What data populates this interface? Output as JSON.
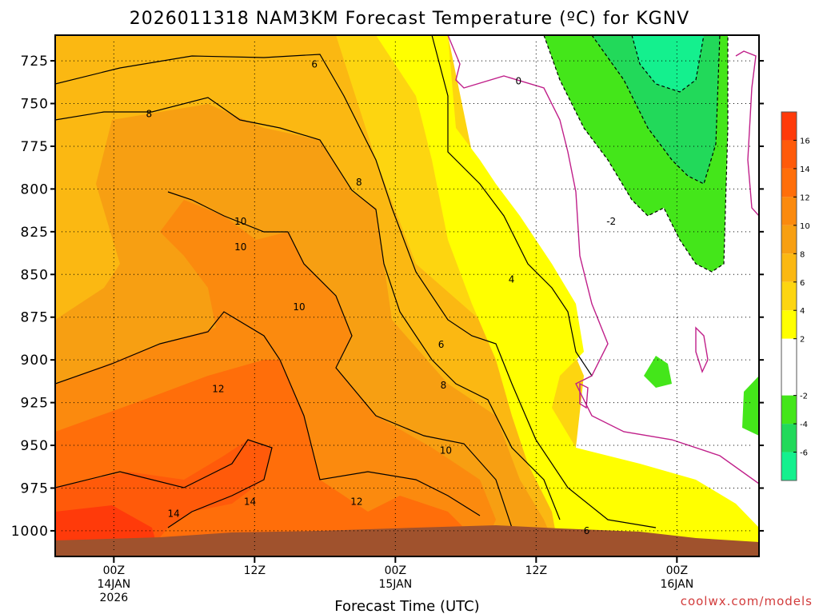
{
  "chart_data": {
    "type": "heatmap",
    "title": "2026011318 NAM3KM Forecast Temperature (ºC) for KGNV",
    "xlabel": "Forecast Time (UTC)",
    "ylabel": "",
    "y_axis": {
      "reversed": true,
      "ylim": [
        1015,
        710
      ],
      "ticks": [
        "725",
        "750",
        "775",
        "800",
        "825",
        "850",
        "875",
        "900",
        "925",
        "950",
        "975",
        "1000"
      ]
    },
    "x_axis": {
      "xlim": [
        -5,
        55
      ],
      "ticks": [
        {
          "hour": 0,
          "lines": [
            "00Z",
            "14JAN",
            "2026"
          ]
        },
        {
          "hour": 12,
          "lines": [
            "12Z"
          ]
        },
        {
          "hour": 24,
          "lines": [
            "00Z",
            "15JAN"
          ]
        },
        {
          "hour": 36,
          "lines": [
            "12Z"
          ]
        },
        {
          "hour": 48,
          "lines": [
            "00Z",
            "16JAN"
          ]
        }
      ]
    },
    "grid": true,
    "colorbar": {
      "ticks": [
        "16",
        "14",
        "12",
        "10",
        "8",
        "6",
        "4",
        "2",
        "-2",
        "-4",
        "-6"
      ],
      "bins": [
        {
          "from": 16,
          "to": 18,
          "color": "#ff3a0a"
        },
        {
          "from": 14,
          "to": 16,
          "color": "#ff5a0a"
        },
        {
          "from": 12,
          "to": 14,
          "color": "#ff6e0a"
        },
        {
          "from": 10,
          "to": 12,
          "color": "#fb8a0e"
        },
        {
          "from": 8,
          "to": 10,
          "color": "#f79f12"
        },
        {
          "from": 6,
          "to": 8,
          "color": "#fbb812"
        },
        {
          "from": 4,
          "to": 6,
          "color": "#fdd510"
        },
        {
          "from": 2,
          "to": 4,
          "color": "#ffff00"
        },
        {
          "from": -2,
          "to": 2,
          "color": "#ffffff"
        },
        {
          "from": -4,
          "to": -2,
          "color": "#44e61a"
        },
        {
          "from": -6,
          "to": -4,
          "color": "#22d95a"
        },
        {
          "from": -8,
          "to": -6,
          "color": "#14f08e"
        }
      ]
    },
    "contour_labels": [
      {
        "text": "6",
        "hour": 17.1,
        "pressure": 727
      },
      {
        "text": "8",
        "hour": 3.0,
        "pressure": 756
      },
      {
        "text": "8",
        "hour": 20.9,
        "pressure": 796
      },
      {
        "text": "10",
        "hour": 10.8,
        "pressure": 819
      },
      {
        "text": "10",
        "hour": 10.8,
        "pressure": 834
      },
      {
        "text": "10",
        "hour": 15.8,
        "pressure": 869
      },
      {
        "text": "12",
        "hour": 8.9,
        "pressure": 917
      },
      {
        "text": "14",
        "hour": 11.6,
        "pressure": 983
      },
      {
        "text": "14",
        "hour": 5.1,
        "pressure": 990
      },
      {
        "text": "12",
        "hour": 20.7,
        "pressure": 983
      },
      {
        "text": "10",
        "hour": 28.3,
        "pressure": 953
      },
      {
        "text": "8",
        "hour": 28.1,
        "pressure": 915
      },
      {
        "text": "6",
        "hour": 27.9,
        "pressure": 891
      },
      {
        "text": "4",
        "hour": 33.9,
        "pressure": 853
      },
      {
        "text": "0",
        "hour": 34.5,
        "pressure": 737
      },
      {
        "text": "-2",
        "hour": 42.4,
        "pressure": 819
      },
      {
        "text": "6",
        "hour": 40.3,
        "pressure": 1000
      }
    ]
  },
  "credit": "coolwx.com/models"
}
